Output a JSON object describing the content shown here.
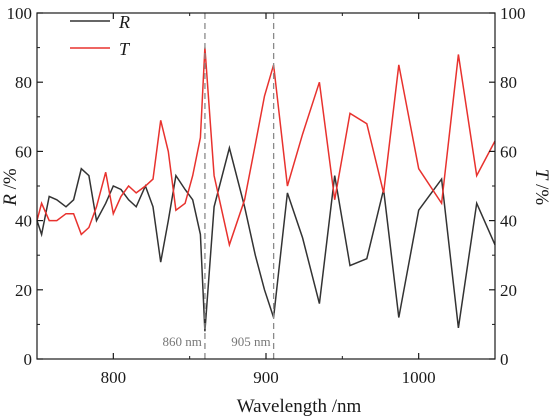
{
  "chart_data": {
    "type": "line",
    "xlabel": "Wavelength /nm",
    "ylabel_left": {
      "var": "R",
      "unit": " /%"
    },
    "ylabel_right": {
      "var": "T",
      "unit": " /%"
    },
    "xlim": [
      750,
      1050
    ],
    "ylim": [
      0,
      100
    ],
    "x_ticks": [
      "800",
      "900",
      "1000"
    ],
    "x_tick_values": [
      800,
      900,
      1000
    ],
    "y_ticks": [
      "0",
      "20",
      "40",
      "60",
      "80",
      "100"
    ],
    "y_tick_values": [
      0,
      20,
      40,
      60,
      80,
      100
    ],
    "grid": false,
    "legend_position": "top-left",
    "annotations": [
      {
        "text": "860 nm",
        "x": 860
      },
      {
        "text": "905 nm",
        "x": 905
      }
    ],
    "series": [
      {
        "name": "R",
        "color": "#333333",
        "x": [
          750,
          753,
          758,
          763,
          769,
          774,
          779,
          784,
          789,
          795,
          800,
          805,
          810,
          815,
          821,
          826,
          831,
          836,
          841,
          847,
          852,
          857,
          860,
          866,
          876,
          886,
          893,
          899,
          905,
          914,
          924,
          935,
          945,
          955,
          966,
          977,
          987,
          1000,
          1015,
          1026,
          1038,
          1050
        ],
        "y": [
          40,
          36,
          47,
          46,
          44,
          46,
          55,
          53,
          40,
          45,
          50,
          49,
          46,
          44,
          50,
          44,
          28,
          40,
          53,
          49,
          46,
          36,
          8,
          44,
          61,
          44,
          30,
          20,
          12,
          48,
          35,
          16,
          53,
          27,
          29,
          49,
          12,
          43,
          52,
          9,
          45,
          33
        ]
      },
      {
        "name": "T",
        "color": "#e8322e",
        "x": [
          750,
          753,
          758,
          763,
          769,
          774,
          779,
          784,
          789,
          795,
          800,
          805,
          810,
          815,
          821,
          826,
          831,
          836,
          841,
          847,
          852,
          857,
          860,
          866,
          876,
          886,
          893,
          899,
          905,
          914,
          924,
          935,
          945,
          955,
          966,
          977,
          987,
          1000,
          1015,
          1026,
          1038,
          1050
        ],
        "y": [
          40,
          45,
          40,
          40,
          42,
          42,
          36,
          38,
          44,
          54,
          42,
          47,
          50,
          48,
          50,
          52,
          69,
          60,
          43,
          45,
          53,
          64,
          90,
          53,
          33,
          46,
          62,
          76,
          85,
          50,
          65,
          80,
          46,
          71,
          68,
          48,
          85,
          55,
          45,
          88,
          53,
          63
        ]
      }
    ]
  }
}
